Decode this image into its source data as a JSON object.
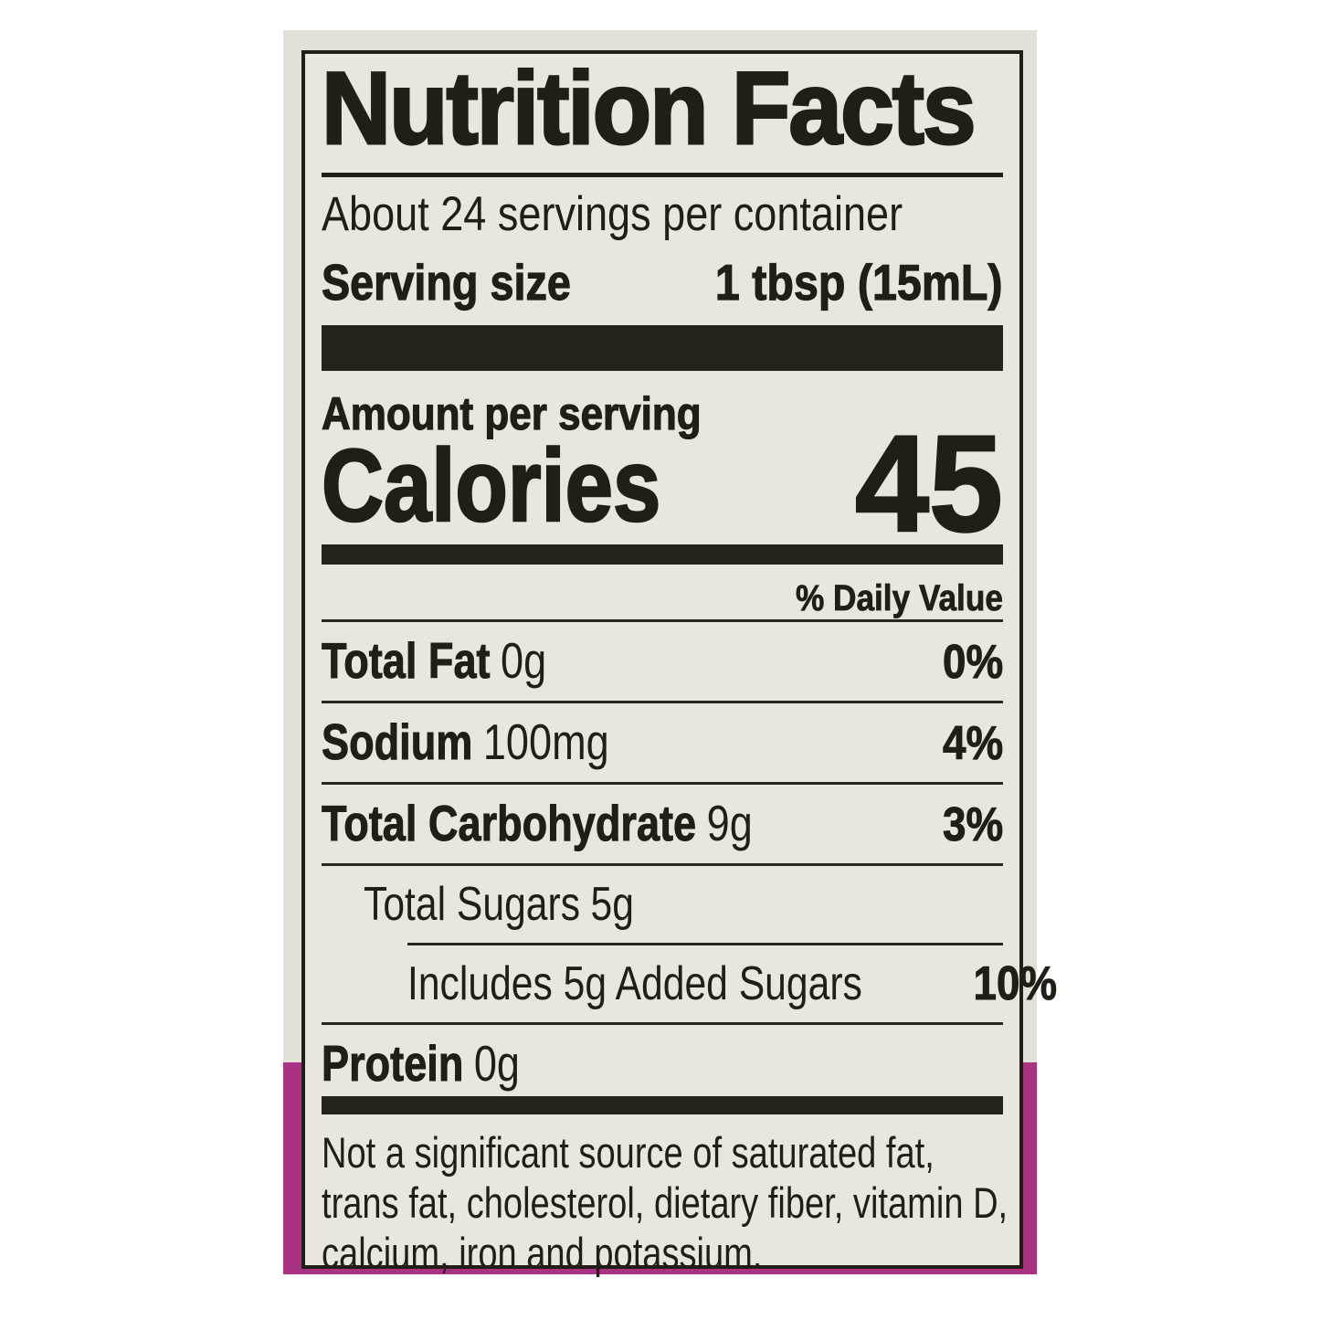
{
  "nutrition_label": {
    "title": "Nutrition Facts",
    "servings_per_container": "About 24 servings per container",
    "serving_size": {
      "label": "Serving size",
      "value": "1 tbsp (15mL)"
    },
    "amount_per_serving": "Amount per serving",
    "calories": {
      "label": "Calories",
      "value": "45"
    },
    "daily_value_header": "% Daily Value",
    "nutrients": [
      {
        "name": "Total Fat",
        "amount": "0g",
        "daily_value": "0%"
      },
      {
        "name": "Sodium",
        "amount": "100mg",
        "daily_value": "4%"
      },
      {
        "name": "Total Carbohydrate",
        "amount": "9g",
        "daily_value": "3%"
      },
      {
        "name": "Total Sugars",
        "amount": "5g",
        "daily_value": ""
      },
      {
        "name": "Includes 5g Added Sugars",
        "amount": "",
        "daily_value": "10%"
      },
      {
        "name": "Protein",
        "amount": "0g",
        "daily_value": ""
      }
    ],
    "footnote_lines": [
      "Not a significant source of saturated fat,",
      "trans fat, cholesterol, dietary fiber, vitamin D,",
      "calcium, iron and potassium."
    ]
  },
  "colors": {
    "ink": "#211d17",
    "label_background": "#e9e6df",
    "photo_background": "#e3e0d9",
    "accent_band": "#a93382",
    "page_background": "#ffffff"
  }
}
